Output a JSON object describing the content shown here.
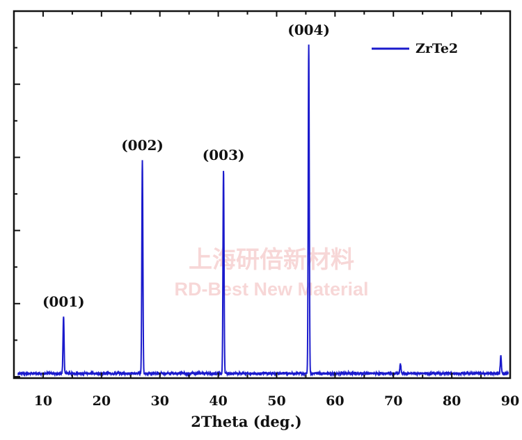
{
  "chart_data": {
    "type": "line",
    "title": "",
    "xlabel": "2Theta (deg.)",
    "ylabel": "",
    "xlim": [
      5,
      90
    ],
    "ylim": [
      0,
      100
    ],
    "x_ticks": [
      10,
      20,
      30,
      40,
      50,
      60,
      70,
      80,
      90
    ],
    "y_ticks_labeled": false,
    "grid": false,
    "legend_position": "top-right",
    "series": [
      {
        "name": "ZrTe2",
        "color": "#1a1acc",
        "baseline": 1.0,
        "peaks": [
          {
            "x": 13.5,
            "y": 17.5
          },
          {
            "x": 27.0,
            "y": 65.0
          },
          {
            "x": 40.9,
            "y": 62.0
          },
          {
            "x": 55.5,
            "y": 100.0
          },
          {
            "x": 71.2,
            "y": 3.0
          },
          {
            "x": 88.4,
            "y": 5.5
          }
        ]
      }
    ],
    "annotations": [
      {
        "text": "(001)",
        "x": 13.5,
        "y": 17.5
      },
      {
        "text": "(002)",
        "x": 27.0,
        "y": 65.0
      },
      {
        "text": "(003)",
        "x": 40.9,
        "y": 62.0
      },
      {
        "text": "(004)",
        "x": 55.5,
        "y": 100.0
      }
    ]
  },
  "watermark": {
    "line1": "上海研倍新材料",
    "line2": "RD-Best New Material"
  }
}
